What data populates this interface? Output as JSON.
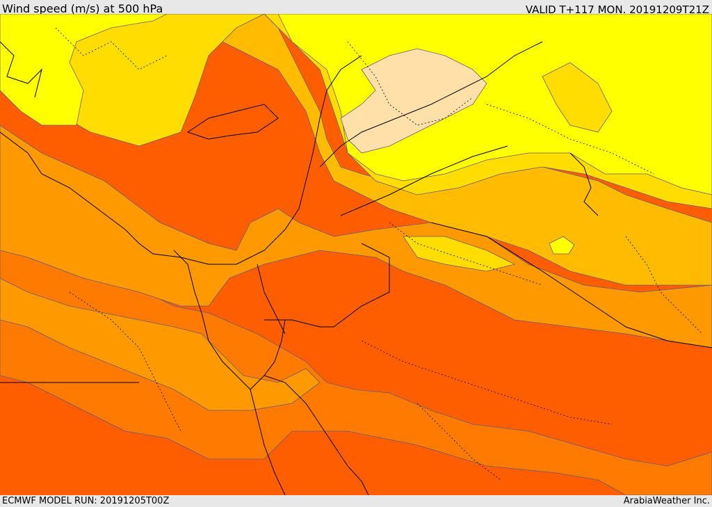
{
  "header": {
    "title": "Wind speed (m/s) at 500 hPa",
    "valid": "VALID T+117 MON. 20191209T21Z"
  },
  "footer": {
    "model_run": "ECMWF MODEL RUN: 20191205T00Z",
    "credit": "ArabiaWeather Inc."
  },
  "colors": {
    "band_0_10": "#ffe0a8",
    "band_10_20": "#ffff00",
    "band_20_25": "#ffdd00",
    "band_25_30": "#ffbb00",
    "band_30_35": "#ff9900",
    "band_35_40": "#ff7a00",
    "band_40_plus": "#ff5e00",
    "coast": "#000000",
    "border": "#000000",
    "contour": "#6a5a7a"
  }
}
